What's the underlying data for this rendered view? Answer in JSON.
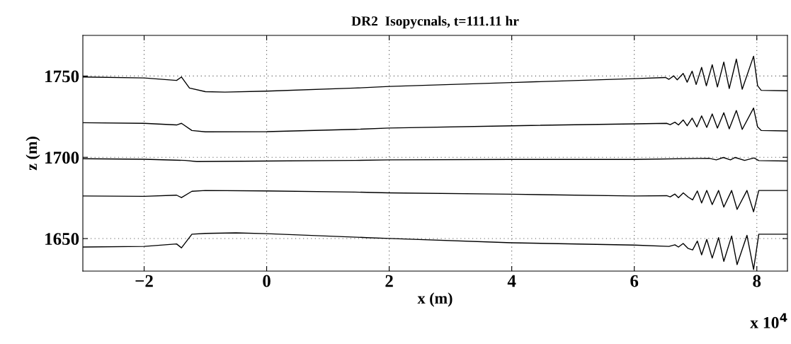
{
  "chart_data": {
    "type": "line",
    "title": "DR2  Isopycnals, t=111.11 hr",
    "xlabel": "x (m)",
    "ylabel": "z (m)",
    "annotations": [
      "x 10$^{4}$"
    ],
    "xlim": [
      -3,
      8.5
    ],
    "ylim": [
      1630,
      1775
    ],
    "xticks": [
      {
        "value": -2,
        "label": "−2"
      },
      0,
      2,
      4,
      6,
      8
    ],
    "yticks": [
      1650,
      1700,
      1750
    ],
    "grid": true,
    "legend": false,
    "marker": "none",
    "line_style": "solid",
    "series": [
      {
        "color": "#000000",
        "x": [
          -3,
          -2,
          -1.47,
          -1.39,
          -1.26,
          -1,
          -0.68,
          0,
          1.44,
          2,
          4,
          6,
          6.508,
          6.566,
          6.644,
          6.701,
          6.798,
          6.863,
          6.944,
          7.01,
          7.099,
          7.176,
          7.272,
          7.357,
          7.461,
          7.55,
          7.666,
          7.762,
          7.947,
          8.013,
          8.071,
          8.5
        ],
        "values": [
          1749.4,
          1748.8,
          1747.3,
          1749.4,
          1742.6,
          1740.4,
          1740.1,
          1740.7,
          1742.6,
          1743.6,
          1746.0,
          1748.4,
          1749.1,
          1748.0,
          1750.1,
          1747.7,
          1751.6,
          1746.2,
          1753.0,
          1744.8,
          1755.3,
          1744.0,
          1757.0,
          1743.3,
          1758.6,
          1742.3,
          1760.4,
          1741.9,
          1762.2,
          1744.0,
          1741.2,
          1740.9
        ]
      },
      {
        "color": "#000000",
        "x": [
          -3,
          -2,
          -1.47,
          -1.39,
          -1.22,
          -1,
          0,
          1.44,
          2,
          4,
          6,
          6.528,
          6.586,
          6.663,
          6.721,
          6.798,
          6.863,
          6.944,
          7.021,
          7.099,
          7.183,
          7.272,
          7.357,
          7.461,
          7.55,
          7.666,
          7.762,
          7.947,
          8.013,
          8.071,
          8.5
        ],
        "values": [
          1721.3,
          1720.9,
          1719.9,
          1720.9,
          1716.5,
          1715.7,
          1715.8,
          1717.2,
          1718.0,
          1719.4,
          1720.6,
          1720.9,
          1720.1,
          1721.6,
          1719.9,
          1723.0,
          1719.4,
          1724.1,
          1718.7,
          1725.5,
          1718.4,
          1726.7,
          1718.0,
          1727.4,
          1717.5,
          1728.8,
          1717.2,
          1730.3,
          1718.7,
          1716.5,
          1716.2
        ]
      },
      {
        "color": "#000000",
        "x": [
          -3,
          -2,
          -1.33,
          -1.14,
          0,
          1.44,
          2,
          4,
          6,
          7.222,
          7.338,
          7.454,
          7.569,
          7.647,
          7.801,
          7.955,
          8.032,
          8.5
        ],
        "values": [
          1699.1,
          1698.8,
          1698.1,
          1697.4,
          1697.7,
          1698.1,
          1698.4,
          1698.7,
          1698.7,
          1699.4,
          1698.4,
          1699.9,
          1698.4,
          1699.9,
          1698.1,
          1699.6,
          1698.0,
          1697.7
        ]
      },
      {
        "color": "#000000",
        "x": [
          -3,
          -2,
          -1.47,
          -1.39,
          -1.22,
          -1,
          0,
          1.44,
          2,
          4,
          6,
          6.528,
          6.586,
          6.663,
          6.721,
          6.8,
          6.88,
          6.952,
          7.029,
          7.099,
          7.183,
          7.272,
          7.376,
          7.461,
          7.589,
          7.678,
          7.839,
          7.947,
          8.032,
          8.5
        ],
        "values": [
          1676.2,
          1676.0,
          1676.7,
          1675.2,
          1679.1,
          1679.6,
          1679.3,
          1678.6,
          1678.1,
          1677.3,
          1676.2,
          1676.4,
          1675.7,
          1677.4,
          1675.2,
          1678.1,
          1675.5,
          1673.8,
          1679.3,
          1671.9,
          1679.6,
          1670.9,
          1679.6,
          1669.4,
          1679.6,
          1668.0,
          1679.6,
          1666.5,
          1679.6,
          1679.6
        ]
      },
      {
        "color": "#000000",
        "x": [
          -3,
          -2,
          -1.47,
          -1.39,
          -1.22,
          -1,
          -0.5,
          0,
          1.63,
          2,
          4,
          6,
          6.566,
          6.663,
          6.721,
          6.798,
          6.875,
          6.952,
          7.029,
          7.099,
          7.183,
          7.272,
          7.376,
          7.461,
          7.589,
          7.678,
          7.839,
          7.947,
          8.032,
          8.5
        ],
        "values": [
          1644.8,
          1645.2,
          1646.7,
          1644.3,
          1652.7,
          1653.2,
          1653.5,
          1653.0,
          1650.6,
          1650.1,
          1647.4,
          1646.0,
          1645.2,
          1646.2,
          1644.8,
          1647.0,
          1644.0,
          1643.0,
          1648.5,
          1640.0,
          1649.5,
          1638.0,
          1650.6,
          1636.0,
          1651.6,
          1634.0,
          1652.0,
          1631.0,
          1652.7,
          1652.7
        ]
      }
    ]
  }
}
